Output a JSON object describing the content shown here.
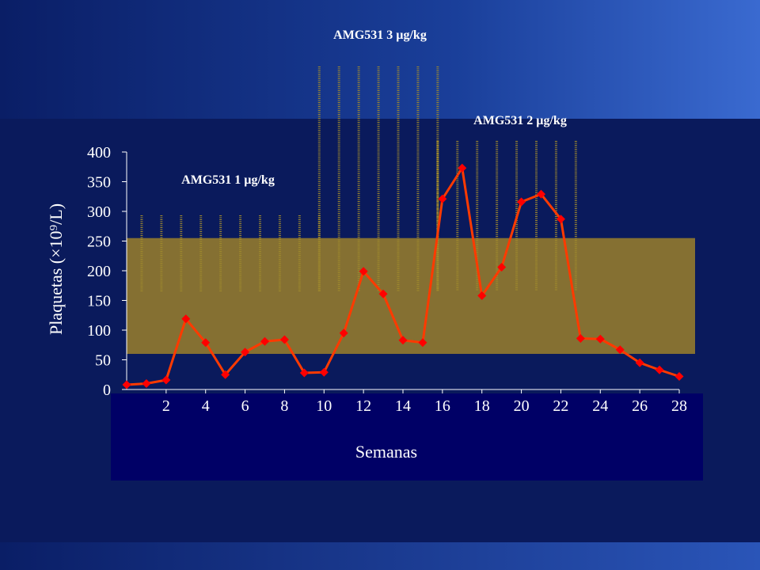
{
  "chart_data": {
    "type": "line",
    "xlabel": "Semanas",
    "ylabel": "Plaquetas (×10⁹/L)",
    "ylim": [
      0,
      400
    ],
    "yticks": [
      "0",
      "50",
      "100",
      "150",
      "200",
      "250",
      "300",
      "350",
      "400"
    ],
    "xticks": [
      "2",
      "4",
      "6",
      "8",
      "10",
      "12",
      "14",
      "16",
      "18",
      "20",
      "22",
      "24",
      "26",
      "28"
    ],
    "xlim": [
      0,
      28
    ],
    "normal_range": [
      60,
      255
    ],
    "series": [
      {
        "color": "#ff0000",
        "x": [
          0,
          1,
          2,
          3,
          4,
          5,
          6,
          7,
          8,
          9,
          10,
          11,
          12,
          13,
          14,
          15,
          16,
          17,
          18,
          19,
          20,
          21,
          22,
          23,
          24,
          25,
          26,
          27,
          28
        ],
        "values": [
          8,
          10,
          16,
          119,
          79,
          25,
          63,
          81,
          84,
          28,
          29,
          95,
          199,
          161,
          83,
          79,
          321,
          373,
          158,
          206,
          316,
          329,
          287,
          86,
          85,
          67,
          45,
          33,
          22
        ]
      }
    ],
    "dose_periods": [
      {
        "label": "AMG531 1 µg/kg",
        "x_start": 1,
        "x_end": 10,
        "level": 1
      },
      {
        "label": "AMG531 3 µg/kg",
        "x_start": 10,
        "x_end": 16,
        "level": 3
      },
      {
        "label": "AMG531 2 µg/kg",
        "x_start": 16,
        "x_end": 23,
        "level": 2
      }
    ],
    "colors": {
      "background": "#0a1a5c",
      "band": "#857032",
      "line": "#ff3a00",
      "marker": "#ff0000",
      "dose_bars": "#a08a2c"
    }
  }
}
